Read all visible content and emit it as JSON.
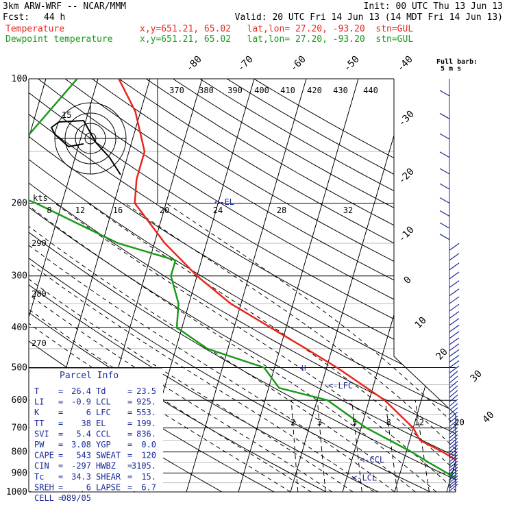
{
  "header": {
    "model": "3km ARW-WRF -- NCAR/MMM",
    "init": "Init: 00 UTC Thu 13 Jun 13",
    "fcst_label": "Fcst:",
    "fcst_value": "44 h",
    "valid": "Valid: 20 UTC Fri 14 Jun 13 (14 MDT Fri 14 Jun 13)"
  },
  "series_labels": [
    {
      "name": "Temperature",
      "info": "x,y=651.21, 65.02   lat,lon= 27.20, -93.20  stn=GUL",
      "color": "#e8261c"
    },
    {
      "name": "Dewpoint temperature",
      "info": "x,y=651.21, 65.02   lat,lon= 27.20, -93.20  stn=GUL",
      "color": "#1a9a1a"
    }
  ],
  "chart_data": {
    "type": "line",
    "pressure_levels": [
      100,
      200,
      300,
      400,
      500,
      600,
      700,
      800,
      900,
      1000
    ],
    "pressure_labels": [
      "100",
      "200",
      "300",
      "400",
      "500",
      "600",
      "700",
      "800",
      "900",
      "1000"
    ],
    "isotherm_labels": [
      "-80",
      "-70",
      "-60",
      "-50",
      "-40",
      "-30",
      "-20",
      "-10",
      "0",
      "10",
      "20",
      "30",
      "40"
    ],
    "theta_labels": [
      "370",
      "380",
      "390",
      "400",
      "410",
      "420",
      "430",
      "440"
    ],
    "theta_side_labels": [
      "290",
      "280",
      "270"
    ],
    "mixing_ratio_labels": [
      "2",
      "3",
      "5",
      "8",
      "12",
      "20"
    ],
    "temperature": [
      [
        100,
        -66
      ],
      [
        120,
        -61
      ],
      [
        150,
        -57
      ],
      [
        175,
        -57
      ],
      [
        200,
        -56
      ],
      [
        250,
        -48
      ],
      [
        300,
        -40
      ],
      [
        350,
        -32
      ],
      [
        400,
        -23
      ],
      [
        450,
        -15
      ],
      [
        500,
        -8
      ],
      [
        600,
        3
      ],
      [
        700,
        10
      ],
      [
        750,
        12
      ],
      [
        800,
        17
      ],
      [
        850,
        21
      ],
      [
        900,
        24
      ],
      [
        925,
        25
      ],
      [
        950,
        25
      ],
      [
        1000,
        26.4
      ]
    ],
    "dewpoint": [
      [
        100,
        -74
      ],
      [
        150,
        -82
      ],
      [
        175,
        -88
      ],
      [
        200,
        -75
      ],
      [
        250,
        -57
      ],
      [
        275,
        -45
      ],
      [
        300,
        -45
      ],
      [
        350,
        -42
      ],
      [
        400,
        -41
      ],
      [
        450,
        -34
      ],
      [
        500,
        -22
      ],
      [
        560,
        -18
      ],
      [
        600,
        -8
      ],
      [
        700,
        1
      ],
      [
        800,
        11
      ],
      [
        850,
        15
      ],
      [
        900,
        19
      ],
      [
        925,
        21
      ],
      [
        975,
        23
      ],
      [
        1000,
        23.5
      ]
    ],
    "temp_color": "#e8261c",
    "dew_color": "#1a9a1a",
    "annotations": [
      {
        "label": "<-EL",
        "p": 199
      },
      {
        "label": "<-LFC",
        "p": 553
      },
      {
        "label": "<-CCL",
        "p": 836
      },
      {
        "label": "<-LCL",
        "p": 925
      }
    ],
    "lcl_marker": "H"
  },
  "hodograph": {
    "speed_label": "kts",
    "speed_ticks": [
      "8",
      "12",
      "16",
      "20",
      "24",
      "28",
      "32"
    ],
    "ring_label": "15"
  },
  "parcel_info": {
    "title": "Parcel Info",
    "rows": [
      {
        "k1": "T",
        "v1": "26.4",
        "k2": "Td",
        "v2": "23.5"
      },
      {
        "k1": "LI",
        "v1": "-0.9",
        "k2": "LCL",
        "v2": "925."
      },
      {
        "k1": "K",
        "v1": "6",
        "k2": "LFC",
        "v2": "553."
      },
      {
        "k1": "TT",
        "v1": "38",
        "k2": "EL",
        "v2": "199."
      },
      {
        "k1": "SVI",
        "v1": "5.4",
        "k2": "CCL",
        "v2": "836."
      },
      {
        "k1": "PW",
        "v1": "3.08",
        "k2": "YGP",
        "v2": "0.0"
      },
      {
        "k1": "CAPE",
        "v1": "543",
        "k2": "SWEAT",
        "v2": "120"
      },
      {
        "k1": "CIN",
        "v1": "-297",
        "k2": "HWBZ",
        "v2": "3105."
      },
      {
        "k1": "Tc",
        "v1": "34.3",
        "k2": "SHEAR",
        "v2": "15."
      },
      {
        "k1": "SREH",
        "v1": "6",
        "k2": "LAPSE",
        "v2": "6.7"
      },
      {
        "k1": "CELL",
        "v1": "089/05",
        "k2": "",
        "v2": ""
      }
    ]
  },
  "wind_barbs": {
    "title": "Full barb:",
    "subtitle": "5 m s",
    "color": "#1a2a9a"
  }
}
